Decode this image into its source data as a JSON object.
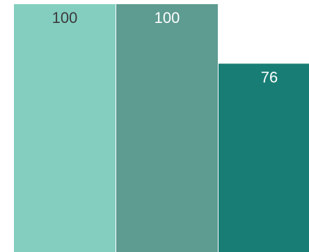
{
  "chart_data": {
    "type": "bar",
    "categories": [
      "",
      "",
      ""
    ],
    "values": [
      100,
      100,
      76
    ],
    "labels": [
      "100",
      "100",
      "76"
    ],
    "ylim": [
      0,
      100
    ],
    "grid": false,
    "legend": "none",
    "colors": [
      "#84cec0",
      "#5e9b91",
      "#187e75"
    ],
    "label_colors": [
      "#3a3a3a",
      "#ffffff",
      "#ffffff"
    ]
  }
}
